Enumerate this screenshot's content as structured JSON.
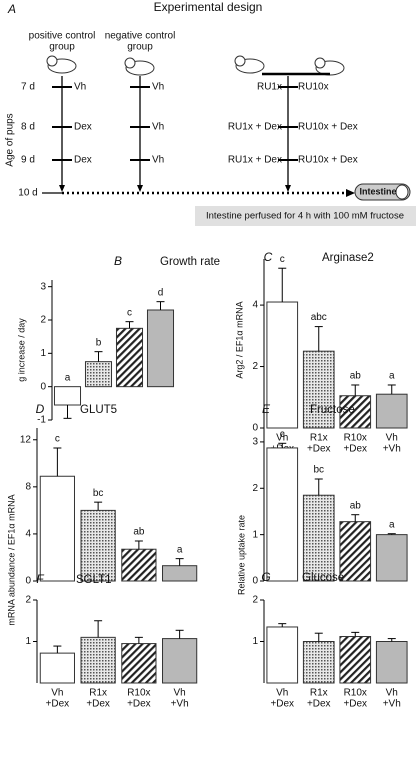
{
  "diagram": {
    "panel": "A",
    "title": "Experimental design",
    "y_axis_label": "Age of pups",
    "days": [
      "7 d",
      "8 d",
      "9 d",
      "10 d"
    ],
    "groups": [
      {
        "label": [
          "positive control",
          "group"
        ],
        "treatments": [
          "Vh",
          "Dex",
          "Dex"
        ]
      },
      {
        "label": [
          "negative control",
          "group"
        ],
        "treatments": [
          "Vh",
          "Vh",
          "Vh"
        ]
      },
      {
        "treatments": [
          "RU1x",
          "RU1x + Dex",
          "RU1x + Dex"
        ]
      },
      {
        "treatments": [
          "RU10x",
          "RU10x + Dex",
          "RU10x + Dex"
        ]
      }
    ],
    "endpoint": "Intestine",
    "note": "Intestine perfused for 4 h with 100 mM fructose"
  },
  "chart_data": [
    {
      "type": "bar",
      "panel": "B",
      "title": "Growth rate",
      "ylabel": "g increase / day",
      "values": [
        -0.55,
        0.75,
        1.75,
        2.3
      ],
      "errors": [
        0.4,
        0.3,
        0.2,
        0.25
      ],
      "letters": [
        "a",
        "b",
        "c",
        "d"
      ],
      "ylim": [
        -1,
        3.2
      ],
      "yticks": [
        -1,
        0,
        1,
        2,
        3
      ]
    },
    {
      "type": "bar",
      "panel": "C",
      "title": "Arginase2",
      "ylabel": "Arg2 / EF1α mRNA",
      "categories": [
        [
          "Vh",
          "+Dex"
        ],
        [
          "R1x",
          "+Dex"
        ],
        [
          "R10x",
          "+Dex"
        ],
        [
          "Vh",
          "+Vh"
        ]
      ],
      "values": [
        4.1,
        2.5,
        1.05,
        1.1
      ],
      "errors": [
        1.1,
        0.8,
        0.35,
        0.3
      ],
      "letters": [
        "c",
        "abc",
        "ab",
        "a"
      ],
      "ylim": [
        0,
        5.5
      ],
      "yticks": [
        0,
        2,
        4
      ]
    },
    {
      "type": "bar",
      "panel": "D",
      "title": "GLUT5",
      "ylabel": "mRNA abundance / EF1α mRNA",
      "values": [
        8.9,
        6.0,
        2.7,
        1.3
      ],
      "errors": [
        2.4,
        0.7,
        0.7,
        0.6
      ],
      "letters": [
        "c",
        "bc",
        "ab",
        "a"
      ],
      "ylim": [
        0,
        13
      ],
      "yticks": [
        0,
        4,
        8,
        12
      ]
    },
    {
      "type": "bar",
      "panel": "E",
      "title": "Fructose",
      "ylabel": "Relative uptake rate",
      "values": [
        2.87,
        1.85,
        1.28,
        1.0
      ],
      "errors": [
        0.1,
        0.35,
        0.15,
        0.02
      ],
      "letters": [
        "c",
        "bc",
        "ab",
        "a"
      ],
      "ylim": [
        0,
        3.3
      ],
      "yticks": [
        0,
        1,
        2,
        3
      ]
    },
    {
      "type": "bar",
      "panel": "F",
      "title": "SGLT1",
      "categories": [
        [
          "Vh",
          "+Dex"
        ],
        [
          "R1x",
          "+Dex"
        ],
        [
          "R10x",
          "+Dex"
        ],
        [
          "Vh",
          "+Vh"
        ]
      ],
      "values": [
        0.72,
        1.1,
        0.95,
        1.07
      ],
      "errors": [
        0.17,
        0.4,
        0.15,
        0.2
      ],
      "ylim": [
        0,
        2
      ],
      "yticks": [
        1,
        2
      ]
    },
    {
      "type": "bar",
      "panel": "G",
      "title": "Glucose",
      "categories": [
        [
          "Vh",
          "+Dex"
        ],
        [
          "R1x",
          "+Dex"
        ],
        [
          "R10x",
          "+Dex"
        ],
        [
          "Vh",
          "+Vh"
        ]
      ],
      "values": [
        1.35,
        1.0,
        1.12,
        1.0
      ],
      "errors": [
        0.08,
        0.2,
        0.1,
        0.07
      ],
      "ylim": [
        0,
        2
      ],
      "yticks": [
        1,
        2
      ]
    }
  ]
}
